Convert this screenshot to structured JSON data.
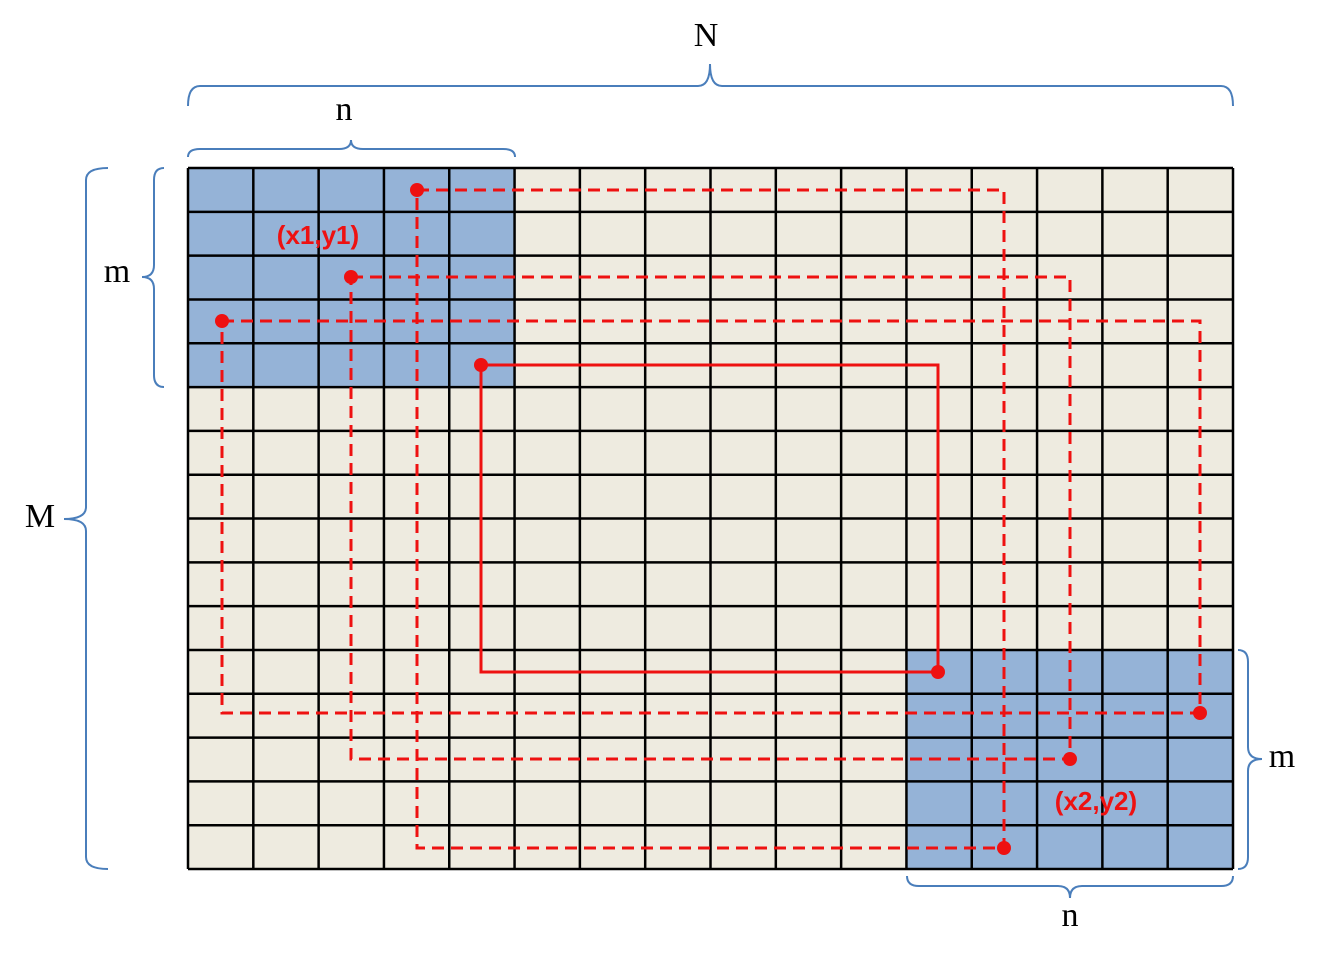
{
  "labels": {
    "big_width": "N",
    "window_width_top": "n",
    "window_height_left": "m",
    "big_height": "M",
    "window_height_right": "m",
    "window_width_bottom": "n"
  },
  "points": {
    "start": "(x1,y1)",
    "end": "(x2,y2)"
  }
}
